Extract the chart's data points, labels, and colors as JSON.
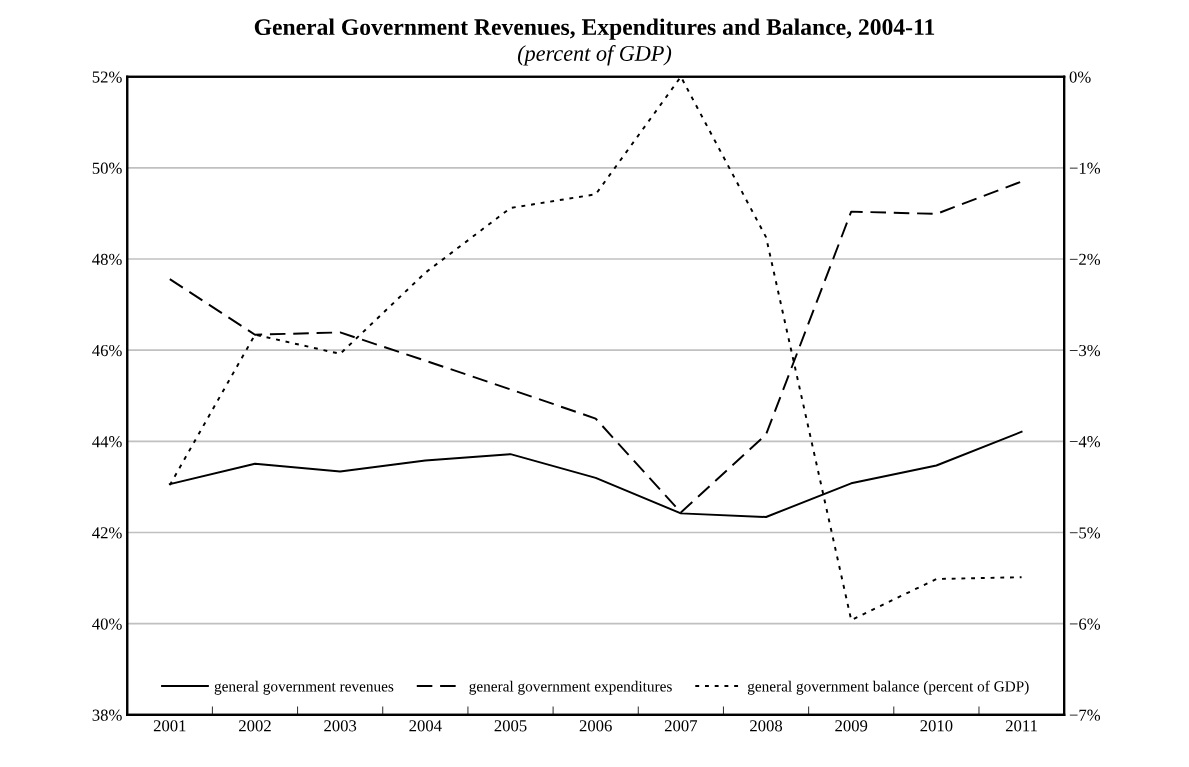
{
  "chart_data": {
    "type": "line",
    "title": "General Government Revenues, Expenditures and Balance, 2004-11",
    "subtitle": "(percent of GDP)",
    "categories": [
      "2001",
      "2002",
      "2003",
      "2004",
      "2005",
      "2006",
      "2007",
      "2008",
      "2009",
      "2010",
      "2011"
    ],
    "series": [
      {
        "name": "general government revenues",
        "color": "#000000",
        "line_style": "solid",
        "values": [
          43.06,
          43.51,
          43.34,
          43.58,
          43.72,
          43.2,
          42.42,
          42.34,
          43.08,
          43.47,
          44.21
        ]
      },
      {
        "name": "general government expenditures",
        "color": "#000000",
        "line_style": "dashed",
        "values": [
          47.56,
          46.34,
          46.39,
          45.77,
          45.14,
          44.5,
          42.44,
          44.15,
          49.04,
          48.99,
          49.7
        ]
      },
      {
        "name": "general government balance (percent of GDP)",
        "color": "#000000",
        "line_style": "dotted",
        "axis": "y2",
        "values": [
          -4.48,
          -2.83,
          -3.04,
          -2.15,
          -1.44,
          -1.29,
          0.0,
          -1.76,
          -5.96,
          -5.51,
          -5.49
        ]
      }
    ],
    "ylim": [
      38,
      52
    ],
    "yticks": [
      {
        "value": 38,
        "label": "38%"
      },
      {
        "value": 40,
        "label": "40%"
      },
      {
        "value": 42,
        "label": "42%"
      },
      {
        "value": 44,
        "label": "44%"
      },
      {
        "value": 46,
        "label": "46%"
      },
      {
        "value": 48,
        "label": "48%"
      },
      {
        "value": 50,
        "label": "50%"
      },
      {
        "value": 52,
        "label": "52%"
      }
    ],
    "y2lim": [
      -7,
      0
    ],
    "y2ticks": [
      {
        "value": -7,
        "label": "−7%"
      },
      {
        "value": -6,
        "label": "−6%"
      },
      {
        "value": -5,
        "label": "−5%"
      },
      {
        "value": -4,
        "label": "−4%"
      },
      {
        "value": -3,
        "label": "−3%"
      },
      {
        "value": -2,
        "label": "−2%"
      },
      {
        "value": -1,
        "label": "−1%"
      },
      {
        "value": 0,
        "label": "0%"
      }
    ],
    "grid": "y",
    "legend": "bottom",
    "marker": "none"
  }
}
